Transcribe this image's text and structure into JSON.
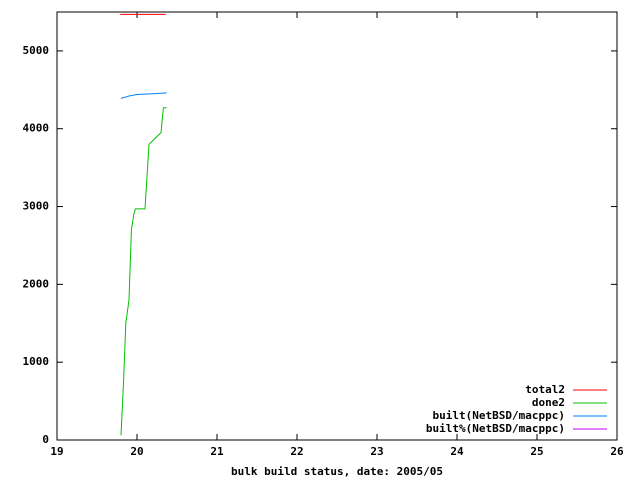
{
  "chart_data": {
    "type": "line",
    "xlabel": "bulk build status, date: 2005/05",
    "xlim": [
      19,
      26
    ],
    "xticks": [
      19,
      20,
      21,
      22,
      23,
      24,
      25,
      26
    ],
    "ylim": [
      0,
      5500
    ],
    "yticks": [
      0,
      1000,
      2000,
      3000,
      4000,
      5000
    ],
    "grid": false,
    "legend": "bottom-right",
    "series": [
      {
        "name": "total2",
        "color": "#ff0000",
        "x": [
          19.79,
          20.36
        ],
        "values": [
          5470,
          5470
        ]
      },
      {
        "name": "done2",
        "color": "#00c000",
        "x": [
          19.8,
          19.83,
          19.86,
          19.9,
          19.93,
          19.96,
          19.98,
          20.1,
          20.12,
          20.15,
          20.2,
          20.25,
          20.3,
          20.33,
          20.37
        ],
        "values": [
          60,
          700,
          1500,
          1800,
          2700,
          2900,
          2970,
          2970,
          3300,
          3800,
          3850,
          3900,
          3950,
          4270,
          4270
        ]
      },
      {
        "name": "built(NetBSD/macppc)",
        "color": "#0080ff",
        "x": [
          19.8,
          19.9,
          20.0,
          20.2,
          20.37
        ],
        "values": [
          4390,
          4420,
          4440,
          4450,
          4460
        ]
      },
      {
        "name": "built%(NetBSD/macppc)",
        "color": "#c000ff",
        "x": [],
        "values": []
      }
    ]
  }
}
